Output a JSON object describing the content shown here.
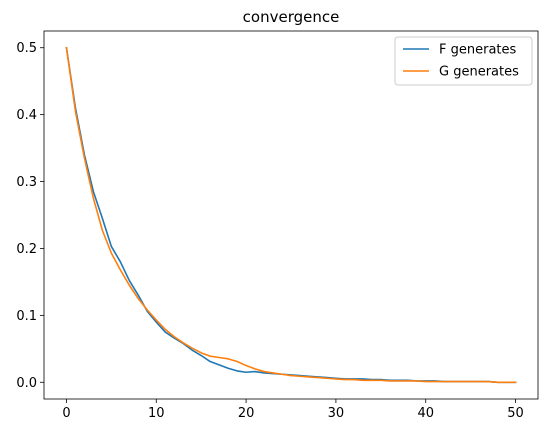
{
  "chart_data": {
    "type": "line",
    "title": "convergence",
    "xlabel": "",
    "ylabel": "",
    "xlim": [
      -2.5,
      52.5
    ],
    "ylim": [
      -0.025,
      0.525
    ],
    "xticks": [
      0,
      10,
      20,
      30,
      40,
      50
    ],
    "yticks": [
      0.0,
      0.1,
      0.2,
      0.3,
      0.4,
      0.5
    ],
    "ytick_labels": [
      "0.0",
      "0.1",
      "0.2",
      "0.3",
      "0.4",
      "0.5"
    ],
    "grid": false,
    "legend_position": "top-right",
    "x": [
      0,
      1,
      2,
      3,
      4,
      5,
      6,
      7,
      8,
      9,
      10,
      11,
      12,
      13,
      14,
      15,
      16,
      17,
      18,
      19,
      20,
      21,
      22,
      23,
      24,
      25,
      26,
      27,
      28,
      29,
      30,
      31,
      32,
      33,
      34,
      35,
      36,
      37,
      38,
      39,
      40,
      41,
      42,
      43,
      44,
      45,
      46,
      47,
      48,
      49,
      50
    ],
    "series": [
      {
        "name": "F generates",
        "color": "#1f77b4",
        "values": [
          0.5,
          0.41,
          0.34,
          0.285,
          0.245,
          0.203,
          0.18,
          0.152,
          0.13,
          0.106,
          0.09,
          0.075,
          0.066,
          0.058,
          0.048,
          0.04,
          0.031,
          0.026,
          0.021,
          0.017,
          0.015,
          0.016,
          0.014,
          0.013,
          0.012,
          0.011,
          0.01,
          0.009,
          0.008,
          0.007,
          0.006,
          0.005,
          0.005,
          0.005,
          0.004,
          0.004,
          0.003,
          0.003,
          0.003,
          0.002,
          0.002,
          0.002,
          0.001,
          0.001,
          0.001,
          0.001,
          0.001,
          0.001,
          0.0,
          0.0,
          0.0
        ]
      },
      {
        "name": "G generates",
        "color": "#ff7f0e",
        "values": [
          0.5,
          0.405,
          0.335,
          0.275,
          0.227,
          0.193,
          0.168,
          0.145,
          0.125,
          0.108,
          0.093,
          0.079,
          0.068,
          0.059,
          0.051,
          0.044,
          0.039,
          0.037,
          0.035,
          0.031,
          0.025,
          0.02,
          0.016,
          0.014,
          0.012,
          0.01,
          0.009,
          0.008,
          0.007,
          0.006,
          0.005,
          0.004,
          0.004,
          0.003,
          0.003,
          0.003,
          0.002,
          0.002,
          0.002,
          0.002,
          0.001,
          0.001,
          0.001,
          0.001,
          0.001,
          0.001,
          0.001,
          0.001,
          0.0,
          0.0,
          0.0
        ]
      }
    ]
  }
}
